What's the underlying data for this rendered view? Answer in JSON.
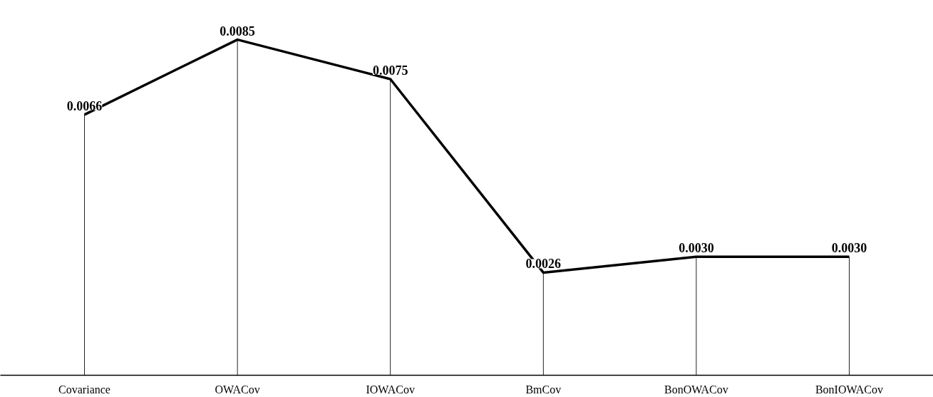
{
  "chart_data": {
    "type": "bar",
    "categories": [
      "Covariance",
      "OWACov",
      "IOWACov",
      "BmCov",
      "BonOWACov",
      "BonIOWACov"
    ],
    "series": [
      {
        "color": "#000000",
        "values": [
          0.0066,
          0.0085,
          0.0075,
          0.0026,
          0.003,
          0.003
        ],
        "value_labels": [
          "0.0066",
          "0.0085",
          "0.0075",
          "0.0026",
          "0.0030",
          "0.0030"
        ]
      },
      {
        "type": "line",
        "color": "#000000",
        "values": [
          0.0066,
          0.0085,
          0.0075,
          0.0026,
          0.003,
          0.003
        ]
      }
    ],
    "tick_labels": "x"
  }
}
